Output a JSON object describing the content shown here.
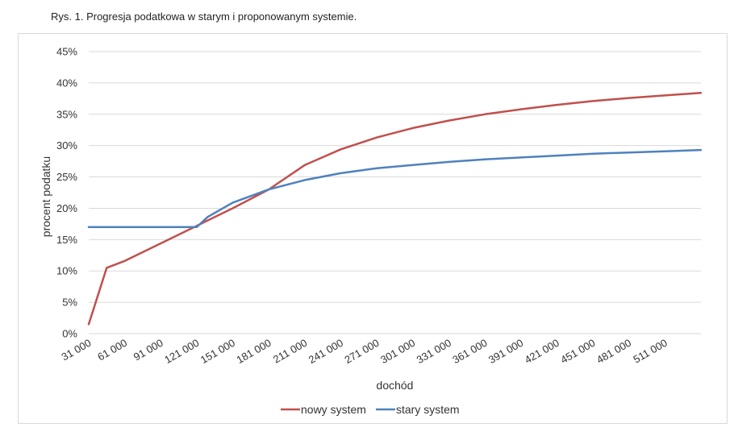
{
  "caption": "Rys. 1. Progresja podatkowa  w starym i proponowanym systemie.",
  "chart_data": {
    "type": "line",
    "title": "",
    "xlabel": "dochód",
    "ylabel": "procent podatku",
    "ylim": [
      0,
      45
    ],
    "xlim": [
      31000,
      541000
    ],
    "y_ticks": [
      "0%",
      "5%",
      "10%",
      "15%",
      "20%",
      "25%",
      "30%",
      "35%",
      "40%",
      "45%"
    ],
    "x_ticks": [
      "31 000",
      "61 000",
      "91 000",
      "121 000",
      "151 000",
      "181 000",
      "211 000",
      "241 000",
      "271 000",
      "301 000",
      "331 000",
      "361 000",
      "391 000",
      "421 000",
      "451 000",
      "481 000",
      "511 000"
    ],
    "grid": true,
    "legend_position": "bottom",
    "series": [
      {
        "name": "nowy system",
        "color": "#c0504d",
        "x": [
          31000,
          46000,
          61000,
          91000,
          121000,
          151000,
          181000,
          211000,
          241000,
          271000,
          301000,
          331000,
          361000,
          391000,
          421000,
          451000,
          481000,
          511000,
          541000
        ],
        "y": [
          1.5,
          10.5,
          11.6,
          14.4,
          17.2,
          20.0,
          23.0,
          26.9,
          29.4,
          31.3,
          32.8,
          34.0,
          35.0,
          35.8,
          36.5,
          37.1,
          37.6,
          38.0,
          38.4
        ]
      },
      {
        "name": "stary system",
        "color": "#4f81bd",
        "x": [
          31000,
          61000,
          91000,
          121000,
          130000,
          151000,
          181000,
          211000,
          241000,
          271000,
          301000,
          331000,
          361000,
          391000,
          421000,
          451000,
          481000,
          511000,
          541000
        ],
        "y": [
          17.0,
          17.0,
          17.0,
          17.0,
          18.6,
          20.9,
          23.0,
          24.5,
          25.6,
          26.4,
          26.9,
          27.4,
          27.8,
          28.1,
          28.4,
          28.7,
          28.9,
          29.1,
          29.3
        ]
      }
    ]
  }
}
